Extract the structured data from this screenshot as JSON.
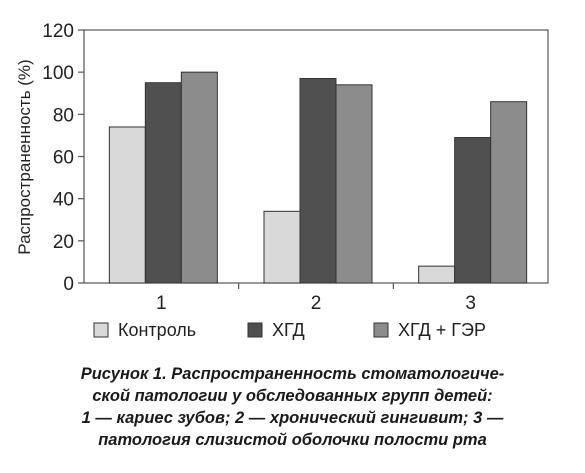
{
  "chart_data": {
    "type": "bar",
    "categories": [
      "1",
      "2",
      "3"
    ],
    "series": [
      {
        "name": "Контроль",
        "values": [
          74,
          34,
          8
        ],
        "color": "#d9d9d9"
      },
      {
        "name": "ХГД",
        "values": [
          95,
          97,
          69
        ],
        "color": "#505050"
      },
      {
        "name": "ХГД + ГЭР",
        "values": [
          100,
          94,
          86
        ],
        "color": "#8c8c8c"
      }
    ],
    "title": "",
    "xlabel": "",
    "ylabel": "Распространенность (%)",
    "ylim": [
      0,
      120
    ],
    "yticks": [
      0,
      20,
      40,
      60,
      80,
      100,
      120
    ],
    "grid": false,
    "legend": "bottom"
  },
  "caption": {
    "lines": [
      "Рисунок 1. Распространенность стоматологиче-",
      "ской патологии у обследованных групп детей:",
      "1 — кариес зубов; 2 — хронический гингивит; 3 —",
      "патология слизистой оболочки полости рта"
    ]
  }
}
